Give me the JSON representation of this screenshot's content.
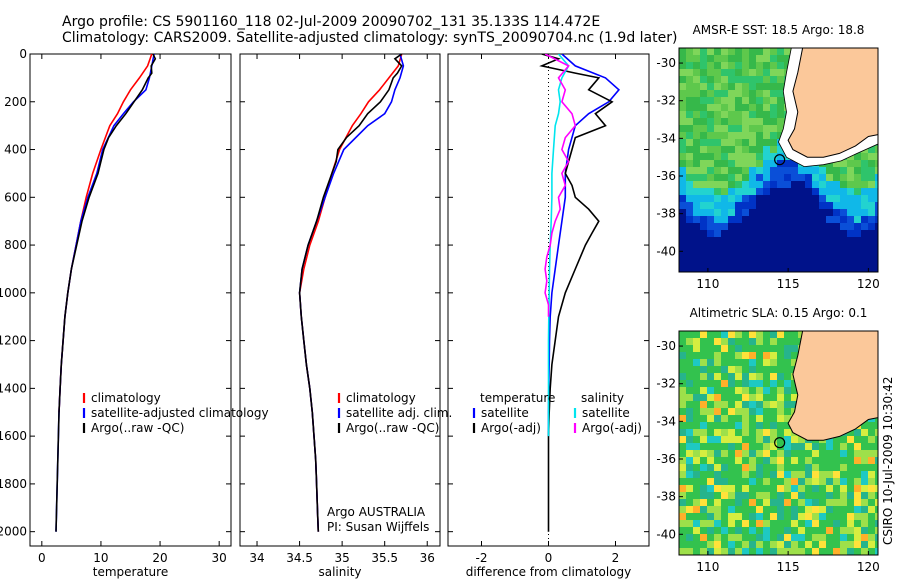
{
  "title": {
    "line1": "Argo profile: CS 5901160_118 02-Jul-2009 20090702_131 35.133S 114.472E",
    "line2": "Climatology: CARS2009. Satellite-adjusted climatology: synTS_20090704.nc (1.9d later)"
  },
  "side_text": "CSIRO 10-Jul-2009 10:30:42",
  "float_info": {
    "line1": "Argo AUSTRALIA",
    "line2": "PI: Susan Wijffels"
  },
  "colors": {
    "climatology": "#ff0000",
    "satellite": "#0000ff",
    "argo": "#000000",
    "sat_cyan": "#00e5ee",
    "argo_adj": "#ff00ff",
    "land": "#fbc89a"
  },
  "chart_data": [
    {
      "type": "line",
      "xlabel": "temperature",
      "xlim": [
        -2,
        32
      ],
      "ylim": [
        2060,
        0
      ],
      "xticks": [
        0,
        10,
        20,
        30
      ],
      "xtick_labels": [
        "0",
        "10",
        "20",
        "30"
      ],
      "yticks": [
        0,
        200,
        400,
        600,
        800,
        1000,
        1200,
        1400,
        1600,
        1800,
        2000
      ],
      "ytick_labels": [
        "0",
        "200",
        "400",
        "600",
        "800",
        "1000",
        "1200",
        "1400",
        "1600",
        "1800",
        "2000"
      ],
      "legend": [
        "climatology",
        "satellite-adjusted climatology",
        "Argo(..raw -QC)"
      ],
      "series": [
        {
          "name": "climatology",
          "color": "#ff0000",
          "y": [
            0,
            50,
            100,
            150,
            200,
            250,
            300,
            400,
            500,
            600,
            700,
            800,
            900,
            1000,
            1100,
            1200,
            1300,
            1400,
            1500
          ],
          "x": [
            18.6,
            17.9,
            16.5,
            15,
            13.8,
            12.8,
            11.5,
            10,
            8.6,
            7.5,
            6.6,
            5.8,
            5,
            4.4,
            3.9,
            3.6,
            3.3,
            3.1,
            2.9
          ]
        },
        {
          "name": "satellite-adjusted climatology",
          "color": "#0000ff",
          "y": [
            0,
            50,
            100,
            150,
            200,
            250,
            300,
            400,
            500,
            600,
            700,
            800,
            900,
            1000,
            1100,
            1200,
            1300,
            1400,
            1500,
            1600,
            1700,
            1800,
            1900,
            2000
          ],
          "x": [
            19,
            18.6,
            18.2,
            17.6,
            15.5,
            13.8,
            12.2,
            10.3,
            9.3,
            7.8,
            6.6,
            5.8,
            5,
            4.4,
            3.9,
            3.6,
            3.3,
            3.1,
            2.9,
            2.8,
            2.7,
            2.6,
            2.5,
            2.4
          ]
        },
        {
          "name": "Argo(..raw -QC)",
          "color": "#000000",
          "y": [
            0,
            20,
            50,
            80,
            100,
            150,
            200,
            250,
            300,
            350,
            400,
            450,
            500,
            600,
            700,
            800,
            900,
            1000,
            1100,
            1200,
            1300,
            1400,
            1500,
            1600,
            1700,
            1800,
            1900,
            2000
          ],
          "x": [
            18.8,
            19.2,
            18.5,
            18.6,
            18,
            17,
            15.6,
            14.2,
            12.6,
            11.3,
            10.5,
            10,
            9.5,
            8,
            6.8,
            5.9,
            5,
            4.4,
            3.9,
            3.6,
            3.3,
            3.1,
            2.9,
            2.8,
            2.7,
            2.6,
            2.5,
            2.4
          ]
        }
      ]
    },
    {
      "type": "line",
      "xlabel": "salinity",
      "xlim": [
        33.8,
        36.15
      ],
      "ylim": [
        2060,
        0
      ],
      "xticks": [
        34,
        34.5,
        35,
        35.5,
        36
      ],
      "xtick_labels": [
        "34",
        "34.5",
        "35",
        "35.5",
        "36"
      ],
      "legend": [
        "climatology",
        "satellite adj. clim.",
        "Argo(..raw -QC)"
      ],
      "series": [
        {
          "name": "climatology",
          "color": "#ff0000",
          "y": [
            0,
            50,
            100,
            150,
            200,
            250,
            300,
            400,
            500,
            600,
            700,
            800,
            900,
            1000,
            1100,
            1200,
            1300,
            1400,
            1500,
            1600,
            1700,
            1800,
            1900,
            2000
          ],
          "x": [
            35.7,
            35.66,
            35.55,
            35.44,
            35.31,
            35.22,
            35.12,
            34.97,
            34.88,
            34.8,
            34.72,
            34.62,
            34.55,
            34.5,
            34.52,
            34.55,
            34.58,
            34.62,
            34.65,
            34.67,
            34.69,
            34.7,
            34.71,
            34.72
          ]
        },
        {
          "name": "satellite adj. clim.",
          "color": "#0000ff",
          "y": [
            0,
            50,
            100,
            150,
            200,
            250,
            300,
            400,
            500,
            600,
            700,
            800,
            900,
            1000,
            1100,
            1200,
            1300,
            1400,
            1500,
            1600,
            1700,
            1800,
            1900,
            2000
          ],
          "x": [
            35.68,
            35.72,
            35.68,
            35.62,
            35.58,
            35.5,
            35.3,
            35.02,
            34.9,
            34.8,
            34.7,
            34.6,
            34.53,
            34.5,
            34.52,
            34.55,
            34.58,
            34.62,
            34.65,
            34.67,
            34.69,
            34.7,
            34.71,
            34.72
          ]
        },
        {
          "name": "Argo(..raw -QC)",
          "color": "#000000",
          "y": [
            0,
            20,
            50,
            80,
            100,
            150,
            200,
            250,
            300,
            350,
            400,
            450,
            500,
            600,
            700,
            800,
            900,
            1000,
            1100,
            1200,
            1300,
            1400,
            1500,
            1600,
            1700,
            1800,
            1900,
            2000
          ],
          "x": [
            35.7,
            35.62,
            35.7,
            35.65,
            35.6,
            35.55,
            35.45,
            35.3,
            35.2,
            35.05,
            34.95,
            34.93,
            34.88,
            34.78,
            34.7,
            34.6,
            34.53,
            34.5,
            34.52,
            34.55,
            34.58,
            34.62,
            34.65,
            34.67,
            34.69,
            34.7,
            34.71,
            34.72
          ]
        }
      ]
    },
    {
      "type": "line",
      "xlabel": "difference from climatology",
      "xlim": [
        -3,
        3
      ],
      "ylim": [
        2060,
        0
      ],
      "xticks": [
        -2,
        0,
        2
      ],
      "xtick_labels": [
        "-2",
        "0",
        "2"
      ],
      "legend_headers": [
        "temperature",
        "salinity"
      ],
      "legend": [
        "satellite",
        "Argo(-adj)",
        "satellite",
        "Argo(-adj)"
      ],
      "series": [
        {
          "name": "satellite",
          "group": "temperature",
          "color": "#0000ff",
          "y": [
            0,
            50,
            100,
            150,
            200,
            250,
            300,
            400,
            500,
            600,
            700,
            800,
            900,
            1000,
            1100,
            1200,
            1300,
            1400,
            1500,
            1600
          ],
          "x": [
            0.4,
            0.8,
            1.7,
            2.1,
            1.8,
            1.2,
            0.8,
            0.6,
            0.5,
            0.5,
            0.4,
            0.3,
            0.2,
            0.1,
            0.05,
            0.03,
            0.02,
            0.01,
            0,
            0
          ]
        },
        {
          "name": "Argo(-adj)",
          "group": "temperature",
          "color": "#000000",
          "y": [
            0,
            20,
            50,
            80,
            100,
            150,
            200,
            250,
            300,
            350,
            400,
            450,
            500,
            550,
            600,
            650,
            700,
            750,
            800,
            900,
            1000,
            1100,
            1200,
            1300,
            1400,
            1500,
            1600,
            1800,
            2000
          ],
          "x": [
            -0.2,
            0.3,
            -0.2,
            0.8,
            1.5,
            1.2,
            1.9,
            1.4,
            1.7,
            0.8,
            0.7,
            0.6,
            0.5,
            0.7,
            0.8,
            1.2,
            1.5,
            1.3,
            1.1,
            0.8,
            0.5,
            0.3,
            0.2,
            0.1,
            0.05,
            0.02,
            0,
            0,
            0
          ]
        },
        {
          "name": "satellite",
          "group": "salinity",
          "color": "#00e5ee",
          "y": [
            0,
            50,
            100,
            150,
            200,
            250,
            300,
            400,
            500,
            600,
            700,
            800,
            900,
            1000,
            1100,
            1200,
            1300,
            1400,
            1500,
            1600
          ],
          "x": [
            0.3,
            0.6,
            0.4,
            0.3,
            0.35,
            0.3,
            0.2,
            0.15,
            0.1,
            0.1,
            0.08,
            0.05,
            0.03,
            0.02,
            0.01,
            0,
            0,
            0,
            0,
            0
          ]
        },
        {
          "name": "Argo(-adj)",
          "group": "salinity",
          "color": "#ff00ff",
          "y": [
            0,
            50,
            100,
            150,
            200,
            250,
            300,
            350,
            400,
            450,
            500,
            550,
            600,
            650,
            700,
            750,
            800,
            850,
            900,
            950,
            1000,
            1050,
            1100
          ],
          "x": [
            -0.1,
            0.6,
            0.3,
            0.5,
            0.4,
            0.7,
            0.8,
            0.5,
            0.4,
            0.6,
            0.4,
            0.5,
            0.3,
            0.35,
            0.2,
            0.1,
            0.05,
            -0.05,
            -0.1,
            -0.05,
            -0.1,
            0,
            0
          ]
        }
      ]
    }
  ],
  "maps": [
    {
      "title": "AMSR-E SST: 18.5  Argo: 18.8",
      "xtick_labels": [
        "110",
        "115",
        "120"
      ],
      "ytick_labels": [
        "-30",
        "-32",
        "-34",
        "-36",
        "-38",
        "-40"
      ]
    },
    {
      "title": "Altimetric SLA: 0.15  Argo: 0.1",
      "xtick_labels": [
        "110",
        "115",
        "120"
      ],
      "ytick_labels": [
        "-30",
        "-32",
        "-34",
        "-36",
        "-38",
        "-40"
      ]
    }
  ]
}
